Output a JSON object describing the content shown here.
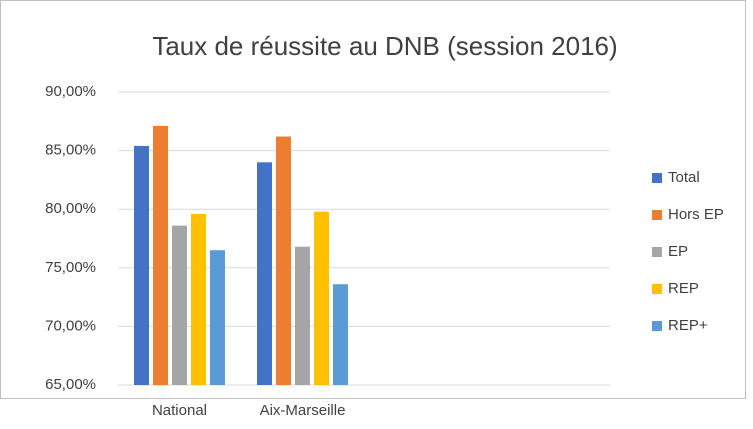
{
  "chart_data": {
    "type": "bar",
    "title": "Taux de réussite au DNB (session 2016)",
    "categories": [
      "National",
      "Aix-Marseille",
      null,
      null
    ],
    "series": [
      {
        "name": "Total",
        "color": "#4472c4",
        "values": [
          85.4,
          84.0,
          null,
          null
        ]
      },
      {
        "name": "Hors EP",
        "color": "#ed7d31",
        "values": [
          87.1,
          86.2,
          null,
          null
        ]
      },
      {
        "name": "EP",
        "color": "#a5a5a5",
        "values": [
          78.6,
          76.8,
          null,
          null
        ]
      },
      {
        "name": "REP",
        "color": "#ffc000",
        "values": [
          79.6,
          79.8,
          null,
          null
        ]
      },
      {
        "name": "REP+",
        "color": "#5b9bd5",
        "values": [
          76.5,
          73.6,
          null,
          null
        ]
      }
    ],
    "ylim": [
      65,
      90
    ],
    "yticks": [
      {
        "value": 65,
        "label": "65,00%"
      },
      {
        "value": 70,
        "label": "70,00%"
      },
      {
        "value": 75,
        "label": "75,00%"
      },
      {
        "value": 80,
        "label": "80,00%"
      },
      {
        "value": 85,
        "label": "85,00%"
      },
      {
        "value": 90,
        "label": "90,00%"
      }
    ],
    "grid": true,
    "legend": "right"
  }
}
